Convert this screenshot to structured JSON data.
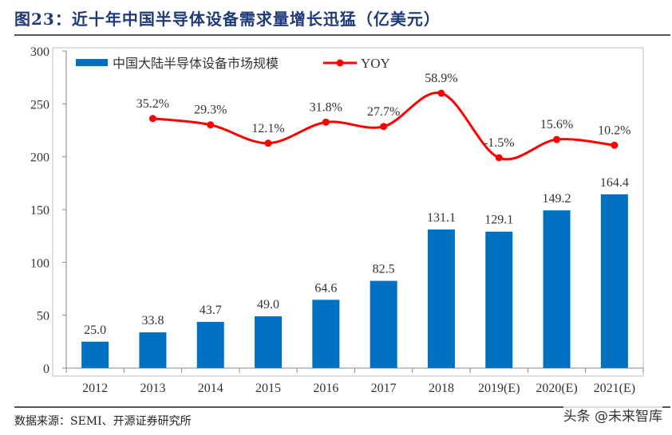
{
  "title": "图23：近十年中国半导体设备需求量增长迅猛（亿美元）",
  "source": "数据来源：SEMI、开源证券研究所",
  "watermark": "头条 @未来智库",
  "chart_data": {
    "type": "bar+line",
    "categories": [
      "2012",
      "2013",
      "2014",
      "2015",
      "2016",
      "2017",
      "2018",
      "2019(E)",
      "2020(E)",
      "2021(E)"
    ],
    "ylim": [
      0,
      300
    ],
    "yticks": [
      0,
      50,
      100,
      150,
      200,
      250,
      300
    ],
    "grid": false,
    "legend_position": "top-left",
    "series": [
      {
        "name": "中国大陆半导体设备市场规模",
        "type": "bar",
        "color": "#0070c0",
        "values": [
          25.0,
          33.8,
          43.7,
          49.0,
          64.6,
          82.5,
          131.1,
          129.1,
          149.2,
          164.4
        ],
        "labels": [
          "25.0",
          "33.8",
          "43.7",
          "49.0",
          "64.6",
          "82.5",
          "131.1",
          "129.1",
          "149.2",
          "164.4"
        ]
      },
      {
        "name": "YOY",
        "type": "line",
        "color": "#ff0000",
        "unit": "%",
        "values": [
          null,
          35.2,
          29.3,
          12.1,
          31.8,
          27.7,
          58.9,
          -1.5,
          15.6,
          10.2
        ],
        "labels": [
          "",
          "35.2%",
          "29.3%",
          "12.1%",
          "31.8%",
          "27.7%",
          "58.9%",
          "-1.5%",
          "15.6%",
          "10.2%"
        ]
      }
    ]
  }
}
